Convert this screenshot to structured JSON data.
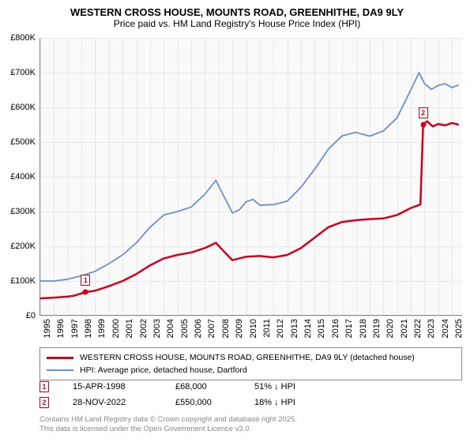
{
  "title_line1": "WESTERN CROSS HOUSE, MOUNTS ROAD, GREENHITHE, DA9 9LY",
  "title_line2": "Price paid vs. HM Land Registry's House Price Index (HPI)",
  "chart": {
    "type": "line",
    "background_color": "#fafafa",
    "grid_color": "#e8e8e8",
    "axis_color": "#888888",
    "xlim": [
      1995,
      2025.8
    ],
    "ylim": [
      0,
      800000
    ],
    "y_ticks": [
      0,
      100000,
      200000,
      300000,
      400000,
      500000,
      600000,
      700000,
      800000
    ],
    "y_tick_labels": [
      "£0",
      "£100K",
      "£200K",
      "£300K",
      "£400K",
      "£500K",
      "£600K",
      "£700K",
      "£800K"
    ],
    "x_ticks": [
      1995,
      1996,
      1997,
      1998,
      1999,
      2000,
      2001,
      2002,
      2003,
      2004,
      2005,
      2006,
      2007,
      2008,
      2009,
      2010,
      2011,
      2012,
      2013,
      2014,
      2015,
      2016,
      2017,
      2018,
      2019,
      2020,
      2021,
      2022,
      2023,
      2024,
      2025
    ],
    "tick_fontsize": 11,
    "series": [
      {
        "name": "red",
        "color": "#d4001a",
        "line_width": 2.5,
        "points": [
          [
            1995,
            50000
          ],
          [
            1996,
            52000
          ],
          [
            1997,
            55000
          ],
          [
            1997.5,
            58000
          ],
          [
            1998.3,
            68000
          ],
          [
            1999,
            72000
          ],
          [
            2000,
            85000
          ],
          [
            2001,
            100000
          ],
          [
            2002,
            120000
          ],
          [
            2003,
            145000
          ],
          [
            2004,
            165000
          ],
          [
            2005,
            175000
          ],
          [
            2006,
            182000
          ],
          [
            2007,
            195000
          ],
          [
            2007.8,
            210000
          ],
          [
            2008.5,
            180000
          ],
          [
            2009,
            160000
          ],
          [
            2009.5,
            165000
          ],
          [
            2010,
            170000
          ],
          [
            2011,
            172000
          ],
          [
            2012,
            168000
          ],
          [
            2013,
            175000
          ],
          [
            2014,
            195000
          ],
          [
            2015,
            225000
          ],
          [
            2016,
            255000
          ],
          [
            2017,
            270000
          ],
          [
            2018,
            275000
          ],
          [
            2019,
            278000
          ],
          [
            2020,
            280000
          ],
          [
            2021,
            290000
          ],
          [
            2022,
            310000
          ],
          [
            2022.7,
            320000
          ],
          [
            2022.9,
            550000
          ],
          [
            2023.2,
            560000
          ],
          [
            2023.6,
            545000
          ],
          [
            2024,
            552000
          ],
          [
            2024.5,
            548000
          ],
          [
            2025,
            555000
          ],
          [
            2025.5,
            550000
          ]
        ]
      },
      {
        "name": "blue",
        "color": "#6a8fd4",
        "line_width": 1.8,
        "points": [
          [
            1995,
            100000
          ],
          [
            1996,
            100000
          ],
          [
            1997,
            105000
          ],
          [
            1998,
            115000
          ],
          [
            1999,
            128000
          ],
          [
            2000,
            150000
          ],
          [
            2001,
            175000
          ],
          [
            2002,
            210000
          ],
          [
            2003,
            255000
          ],
          [
            2004,
            290000
          ],
          [
            2005,
            300000
          ],
          [
            2006,
            313000
          ],
          [
            2007,
            350000
          ],
          [
            2007.8,
            390000
          ],
          [
            2008.3,
            350000
          ],
          [
            2009,
            296000
          ],
          [
            2009.5,
            305000
          ],
          [
            2010,
            328000
          ],
          [
            2010.5,
            335000
          ],
          [
            2011,
            318000
          ],
          [
            2012,
            320000
          ],
          [
            2013,
            330000
          ],
          [
            2014,
            370000
          ],
          [
            2015,
            422000
          ],
          [
            2016,
            480000
          ],
          [
            2017,
            518000
          ],
          [
            2018,
            528000
          ],
          [
            2019,
            517000
          ],
          [
            2020,
            532000
          ],
          [
            2021,
            570000
          ],
          [
            2022,
            650000
          ],
          [
            2022.6,
            700000
          ],
          [
            2023,
            668000
          ],
          [
            2023.5,
            652000
          ],
          [
            2024,
            663000
          ],
          [
            2024.5,
            668000
          ],
          [
            2025,
            657000
          ],
          [
            2025.5,
            665000
          ]
        ]
      }
    ],
    "markers": [
      {
        "num": "1",
        "x": 1998.3,
        "y": 68000,
        "color": "#d4001a"
      },
      {
        "num": "2",
        "x": 2022.9,
        "y": 550000,
        "color": "#d4001a"
      }
    ]
  },
  "legend": [
    {
      "color": "#d4001a",
      "width": 3,
      "label": "WESTERN CROSS HOUSE, MOUNTS ROAD, GREENHITHE, DA9 9LY (detached house)"
    },
    {
      "color": "#6a8fd4",
      "width": 2,
      "label": "HPI: Average price, detached house, Dartford"
    }
  ],
  "sales_table": [
    {
      "num": "1",
      "color": "#d4001a",
      "date": "15-APR-1998",
      "price": "£68,000",
      "pct": "51% ↓ HPI"
    },
    {
      "num": "2",
      "color": "#d4001a",
      "date": "28-NOV-2022",
      "price": "£550,000",
      "pct": "18% ↓ HPI"
    }
  ],
  "footer_line1": "Contains HM Land Registry data © Crown copyright and database right 2025.",
  "footer_line2": "This data is licensed under the Open Government Licence v3.0."
}
